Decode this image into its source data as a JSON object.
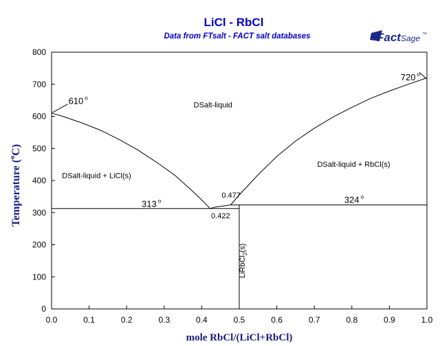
{
  "chart_data": {
    "type": "line",
    "title": "LiCl - RbCl",
    "subtitle": "Data from FTsalt - FACT salt databases",
    "logo": {
      "brand": "Fact",
      "suffix": "Sage",
      "tm": "™"
    },
    "xlabel": "mole RbCl/(LiCl+RbCl)",
    "ylabel": {
      "text": "Temperature",
      "unit_prefix": "(",
      "degree": "o",
      "unit": "C)"
    },
    "xlim": [
      0,
      1
    ],
    "ylim": [
      0,
      800
    ],
    "xticks": [
      {
        "v": 0.0,
        "label": "0.0"
      },
      {
        "v": 0.1,
        "label": "0.1"
      },
      {
        "v": 0.2,
        "label": "0.2"
      },
      {
        "v": 0.3,
        "label": "0.3"
      },
      {
        "v": 0.4,
        "label": "0.4"
      },
      {
        "v": 0.5,
        "label": "0.5"
      },
      {
        "v": 0.6,
        "label": "0.6"
      },
      {
        "v": 0.7,
        "label": "0.7"
      },
      {
        "v": 0.8,
        "label": "0.8"
      },
      {
        "v": 0.9,
        "label": "0.9"
      },
      {
        "v": 1.0,
        "label": "1.0"
      }
    ],
    "yticks": [
      {
        "v": 0,
        "label": "0"
      },
      {
        "v": 100,
        "label": "100"
      },
      {
        "v": 200,
        "label": "200"
      },
      {
        "v": 300,
        "label": "300"
      },
      {
        "v": 400,
        "label": "400"
      },
      {
        "v": 500,
        "label": "500"
      },
      {
        "v": 600,
        "label": "600"
      },
      {
        "v": 700,
        "label": "700"
      },
      {
        "v": 800,
        "label": "800"
      }
    ],
    "grid": false,
    "lines": [
      {
        "name": "liquidus-licl",
        "points": [
          [
            0,
            610
          ],
          [
            0.03,
            600
          ],
          [
            0.08,
            580
          ],
          [
            0.13,
            557
          ],
          [
            0.18,
            528
          ],
          [
            0.23,
            495
          ],
          [
            0.28,
            457
          ],
          [
            0.33,
            415
          ],
          [
            0.37,
            373
          ],
          [
            0.4,
            340
          ],
          [
            0.422,
            313
          ]
        ]
      },
      {
        "name": "liquidus-peritectic",
        "points": [
          [
            0.422,
            313
          ],
          [
            0.44,
            318
          ],
          [
            0.46,
            321
          ],
          [
            0.477,
            324
          ]
        ]
      },
      {
        "name": "liquidus-rbcl",
        "points": [
          [
            0.477,
            324
          ],
          [
            0.5,
            355
          ],
          [
            0.55,
            418
          ],
          [
            0.6,
            475
          ],
          [
            0.65,
            523
          ],
          [
            0.7,
            563
          ],
          [
            0.75,
            598
          ],
          [
            0.8,
            628
          ],
          [
            0.85,
            656
          ],
          [
            0.9,
            679
          ],
          [
            0.95,
            700
          ],
          [
            1.0,
            720
          ]
        ]
      },
      {
        "name": "eutectic-line",
        "points": [
          [
            0,
            313
          ],
          [
            0.5,
            313
          ]
        ]
      },
      {
        "name": "peritectic-line",
        "points": [
          [
            0.477,
            324
          ],
          [
            1.0,
            324
          ]
        ]
      },
      {
        "name": "compound-line",
        "points": [
          [
            0.5,
            0
          ],
          [
            0.5,
            324
          ]
        ]
      }
    ],
    "annotations": [
      {
        "name": "label-610",
        "text": "610",
        "sup": "o",
        "x": 0.045,
        "y": 638
      },
      {
        "name": "label-720",
        "text": "720",
        "sup": "o",
        "x": 0.93,
        "y": 712
      },
      {
        "name": "label-313",
        "text": "313",
        "sup": "o",
        "x": 0.24,
        "y": 318
      },
      {
        "name": "label-324",
        "text": "324",
        "sup": "o",
        "x": 0.78,
        "y": 330
      },
      {
        "name": "label-0477",
        "text": "0.477",
        "x": 0.453,
        "y": 346
      },
      {
        "name": "label-0422",
        "text": "0.422",
        "x": 0.425,
        "y": 282
      }
    ],
    "leaders": [
      {
        "name": "leader-610",
        "from": [
          0.002,
          612
        ],
        "to": [
          0.043,
          638
        ]
      },
      {
        "name": "leader-720",
        "from": [
          0.998,
          718
        ],
        "to": [
          0.98,
          737
        ]
      }
    ],
    "regions": [
      {
        "name": "region-liquid",
        "text": "DSalt-liquid",
        "x": 0.43,
        "y": 628
      },
      {
        "name": "region-liquid-licl",
        "text": "DSalt-liquid + LiCl(s)",
        "x": 0.12,
        "y": 408
      },
      {
        "name": "region-liquid-rbcl",
        "text": "DSalt-liquid + RbCl(s)",
        "x": 0.805,
        "y": 443
      }
    ],
    "compound_label": {
      "text": "LiRbCl",
      "sub": "2",
      "tail": "(s)",
      "x": 0.515,
      "y": 150
    }
  }
}
